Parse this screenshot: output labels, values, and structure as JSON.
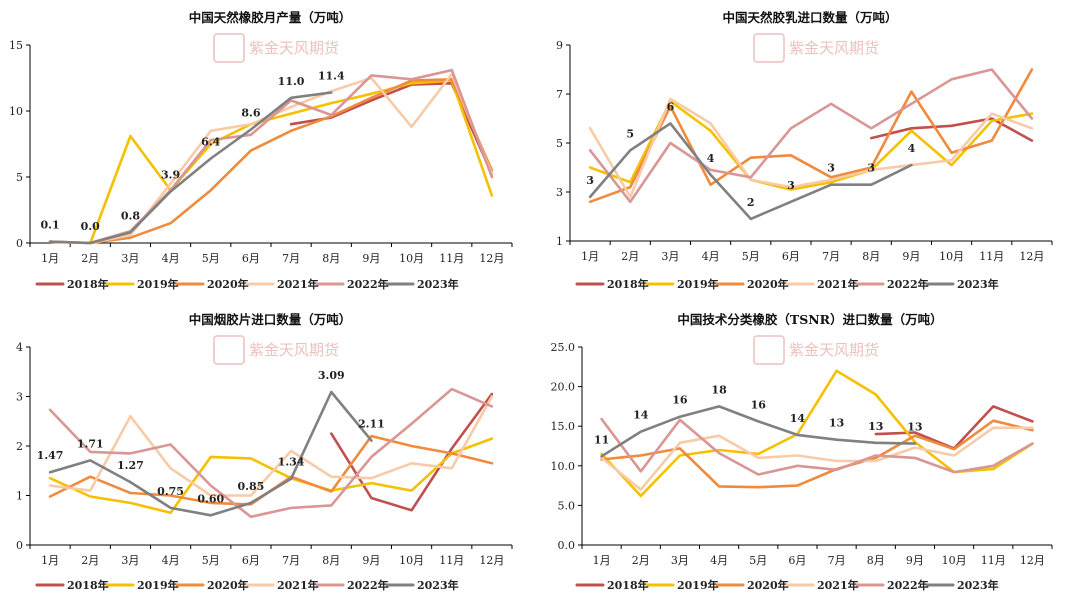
{
  "colors": {
    "2018年": "#c0504d",
    "2019年": "#f5c000",
    "2020年": "#f08a3c",
    "2021年": "#f8cba8",
    "2022年": "#d99694",
    "2023年": "#808080"
  },
  "watermark": {
    "text": "紫金天风期货"
  },
  "chart_data": [
    {
      "type": "line",
      "title": "中国天然橡胶月产量（万吨）",
      "categories": [
        "1月",
        "2月",
        "3月",
        "4月",
        "5月",
        "6月",
        "7月",
        "8月",
        "9月",
        "10月",
        "11月",
        "12月"
      ],
      "ylim": [
        0,
        15
      ],
      "yticks": [
        "0",
        "5",
        "10",
        "15"
      ],
      "ytick_values": [
        0,
        5,
        10,
        15
      ],
      "legend_position": "bottom",
      "series": [
        {
          "name": "2018年",
          "values": [
            null,
            null,
            null,
            null,
            null,
            null,
            9.0,
            9.5,
            10.8,
            12.0,
            12.1,
            5.2
          ]
        },
        {
          "name": "2019年",
          "values": [
            0.1,
            0.0,
            8.1,
            4.0,
            7.5,
            9.0,
            9.8,
            10.6,
            11.3,
            12.1,
            12.3,
            3.6
          ]
        },
        {
          "name": "2020年",
          "values": [
            0.1,
            0.0,
            0.4,
            1.5,
            4.0,
            7.0,
            8.5,
            9.6,
            11.0,
            12.3,
            12.4,
            5.5
          ]
        },
        {
          "name": "2021年",
          "values": [
            0.1,
            0.0,
            0.6,
            4.5,
            8.5,
            9.0,
            10.3,
            11.5,
            12.5,
            8.8,
            12.8,
            5.2
          ]
        },
        {
          "name": "2022年",
          "values": [
            0.1,
            0.0,
            0.9,
            4.0,
            7.8,
            8.2,
            10.8,
            9.7,
            12.7,
            12.4,
            13.1,
            5.0
          ]
        },
        {
          "name": "2023年",
          "values": [
            0.1,
            0.0,
            0.8,
            3.9,
            6.4,
            8.6,
            11.0,
            11.4,
            null,
            null,
            null,
            null
          ]
        }
      ],
      "labels": [
        {
          "i": 0,
          "value": 0.1,
          "text": "0.1"
        },
        {
          "i": 1,
          "value": 0.0,
          "text": "0.0"
        },
        {
          "i": 2,
          "value": 0.8,
          "text": "0.8"
        },
        {
          "i": 3,
          "value": 3.9,
          "text": "3.9"
        },
        {
          "i": 4,
          "value": 6.4,
          "text": "6.4"
        },
        {
          "i": 5,
          "value": 8.6,
          "text": "8.6"
        },
        {
          "i": 6,
          "value": 11.0,
          "text": "11.0"
        },
        {
          "i": 7,
          "value": 11.4,
          "text": "11.4"
        }
      ]
    },
    {
      "type": "line",
      "title": "中国天然胶乳进口数量（万吨）",
      "categories": [
        "1月",
        "2月",
        "3月",
        "4月",
        "5月",
        "6月",
        "7月",
        "8月",
        "9月",
        "10月",
        "11月",
        "12月"
      ],
      "ylim": [
        1,
        9
      ],
      "yticks": [
        "1",
        "3",
        "5",
        "7",
        "9"
      ],
      "ytick_values": [
        1,
        3,
        5,
        7,
        9
      ],
      "legend_position": "bottom",
      "series": [
        {
          "name": "2018年",
          "values": [
            null,
            null,
            null,
            null,
            null,
            null,
            null,
            5.2,
            5.6,
            5.7,
            6.0,
            5.1
          ]
        },
        {
          "name": "2019年",
          "values": [
            4.0,
            3.4,
            6.7,
            5.5,
            3.5,
            3.1,
            3.4,
            3.9,
            5.5,
            4.1,
            5.9,
            6.2
          ]
        },
        {
          "name": "2020年",
          "values": [
            2.6,
            3.2,
            6.5,
            3.3,
            4.4,
            4.5,
            3.6,
            4.0,
            7.1,
            4.6,
            5.1,
            8.0
          ]
        },
        {
          "name": "2021年",
          "values": [
            5.6,
            2.8,
            6.8,
            5.8,
            3.5,
            3.2,
            3.5,
            3.9,
            4.1,
            4.3,
            6.2,
            5.6
          ]
        },
        {
          "name": "2022年",
          "values": [
            4.7,
            2.6,
            5.0,
            3.9,
            3.6,
            5.6,
            6.6,
            5.6,
            6.6,
            7.6,
            8.0,
            6.0
          ]
        },
        {
          "name": "2023年",
          "values": [
            2.8,
            4.7,
            5.8,
            3.7,
            1.9,
            2.6,
            3.3,
            3.3,
            4.1,
            null,
            null,
            null
          ]
        }
      ],
      "labels": [
        {
          "i": 0,
          "value": 2.8,
          "text": "3"
        },
        {
          "i": 1,
          "value": 4.7,
          "text": "5"
        },
        {
          "i": 2,
          "value": 5.8,
          "text": "6"
        },
        {
          "i": 3,
          "value": 3.7,
          "text": "4"
        },
        {
          "i": 4,
          "value": 1.9,
          "text": "2"
        },
        {
          "i": 5,
          "value": 2.6,
          "text": "3"
        },
        {
          "i": 6,
          "value": 3.3,
          "text": "3"
        },
        {
          "i": 7,
          "value": 3.3,
          "text": "3"
        },
        {
          "i": 8,
          "value": 4.1,
          "text": "4"
        }
      ]
    },
    {
      "type": "line",
      "title": "中国烟胶片进口数量（万吨）",
      "categories": [
        "1月",
        "2月",
        "3月",
        "4月",
        "5月",
        "6月",
        "7月",
        "8月",
        "9月",
        "10月",
        "11月",
        "12月"
      ],
      "ylim": [
        0,
        4
      ],
      "yticks": [
        "0",
        "1",
        "2",
        "3",
        "4"
      ],
      "ytick_values": [
        0,
        1,
        2,
        3,
        4
      ],
      "legend_position": "bottom",
      "series": [
        {
          "name": "2018年",
          "values": [
            null,
            null,
            null,
            null,
            null,
            null,
            null,
            2.25,
            0.95,
            0.7,
            1.95,
            3.05
          ]
        },
        {
          "name": "2019年",
          "values": [
            1.35,
            0.98,
            0.85,
            0.65,
            1.78,
            1.75,
            1.35,
            1.1,
            1.25,
            1.1,
            1.85,
            2.15
          ]
        },
        {
          "name": "2020年",
          "values": [
            0.98,
            1.38,
            1.05,
            1.0,
            0.85,
            0.82,
            1.38,
            1.08,
            2.2,
            2.0,
            1.85,
            1.65
          ]
        },
        {
          "name": "2021年",
          "values": [
            1.2,
            1.1,
            2.6,
            1.55,
            1.0,
            1.0,
            1.9,
            1.38,
            1.35,
            1.65,
            1.55,
            3.0
          ]
        },
        {
          "name": "2022年",
          "values": [
            2.73,
            1.88,
            1.85,
            2.03,
            1.2,
            0.57,
            0.75,
            0.8,
            1.78,
            2.45,
            3.15,
            2.8
          ]
        },
        {
          "name": "2023年",
          "values": [
            1.47,
            1.71,
            1.27,
            0.75,
            0.6,
            0.85,
            1.34,
            3.09,
            2.11,
            null,
            null,
            null
          ]
        }
      ],
      "labels": [
        {
          "i": 0,
          "value": 1.47,
          "text": "1.47"
        },
        {
          "i": 1,
          "value": 1.71,
          "text": "1.71"
        },
        {
          "i": 2,
          "value": 1.27,
          "text": "1.27"
        },
        {
          "i": 3,
          "value": 0.75,
          "text": "0.75"
        },
        {
          "i": 4,
          "value": 0.6,
          "text": "0.60"
        },
        {
          "i": 5,
          "value": 0.85,
          "text": "0.85"
        },
        {
          "i": 6,
          "value": 1.34,
          "text": "1.34"
        },
        {
          "i": 7,
          "value": 3.09,
          "text": "3.09"
        },
        {
          "i": 8,
          "value": 2.11,
          "text": "2.11"
        }
      ]
    },
    {
      "type": "line",
      "title": "中国技术分类橡胶（TSNR）进口数量（万吨）",
      "categories": [
        "1月",
        "2月",
        "3月",
        "4月",
        "5月",
        "6月",
        "7月",
        "8月",
        "9月",
        "10月",
        "11月",
        "12月"
      ],
      "ylim": [
        0,
        25
      ],
      "yticks": [
        "0.0",
        "5.0",
        "10.0",
        "15.0",
        "20.0",
        "25.0"
      ],
      "ytick_values": [
        0,
        5,
        10,
        15,
        20,
        25
      ],
      "legend_position": "bottom",
      "series": [
        {
          "name": "2018年",
          "values": [
            null,
            null,
            null,
            null,
            null,
            null,
            null,
            14.0,
            14.2,
            12.2,
            17.5,
            15.6
          ]
        },
        {
          "name": "2019年",
          "values": [
            11.5,
            6.2,
            11.3,
            12.0,
            11.5,
            14.0,
            22.0,
            19.0,
            13.0,
            9.2,
            9.6,
            12.8
          ]
        },
        {
          "name": "2020年",
          "values": [
            10.8,
            11.3,
            12.2,
            7.4,
            7.3,
            7.5,
            9.6,
            11.0,
            13.8,
            12.1,
            15.7,
            14.5
          ]
        },
        {
          "name": "2021年",
          "values": [
            11.0,
            7.0,
            12.9,
            13.8,
            11.0,
            11.3,
            10.6,
            10.6,
            12.3,
            11.3,
            14.8,
            14.8
          ]
        },
        {
          "name": "2022年",
          "values": [
            15.9,
            9.3,
            15.8,
            11.6,
            8.9,
            10.0,
            9.5,
            11.3,
            11.0,
            9.2,
            10.0,
            12.8
          ]
        },
        {
          "name": "2023年",
          "values": [
            11.2,
            14.3,
            16.2,
            17.5,
            15.6,
            13.9,
            13.3,
            12.9,
            12.8,
            null,
            null,
            null
          ]
        }
      ],
      "labels": [
        {
          "i": 0,
          "value": 11.2,
          "text": "11"
        },
        {
          "i": 1,
          "value": 14.3,
          "text": "14"
        },
        {
          "i": 2,
          "value": 16.2,
          "text": "16"
        },
        {
          "i": 3,
          "value": 17.5,
          "text": "18"
        },
        {
          "i": 4,
          "value": 15.6,
          "text": "16"
        },
        {
          "i": 5,
          "value": 13.9,
          "text": "14"
        },
        {
          "i": 6,
          "value": 13.3,
          "text": "13"
        },
        {
          "i": 7,
          "value": 12.9,
          "text": "13"
        },
        {
          "i": 8,
          "value": 12.8,
          "text": "13"
        }
      ]
    }
  ]
}
